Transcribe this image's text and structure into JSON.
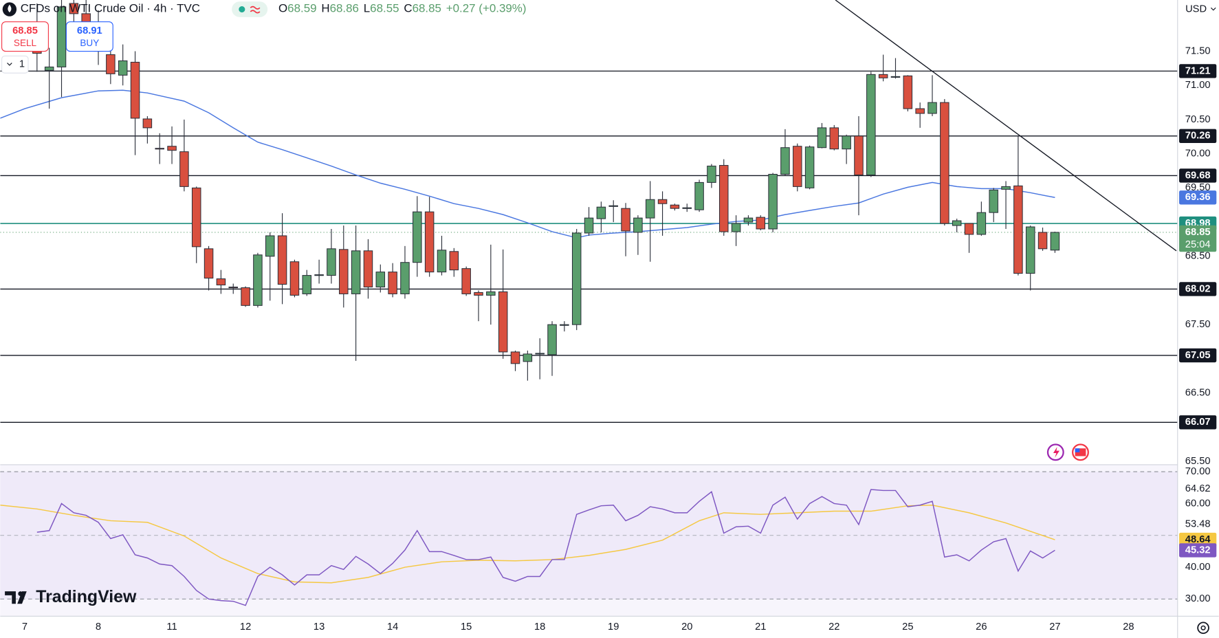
{
  "chart_data": {
    "type": "candlestick",
    "title": "CFDs on WTI Crude Oil · 4h · TVC",
    "header": {
      "o": "O",
      "h": "H",
      "l": "L",
      "c": "C",
      "change": "+0.27 (+0.39%)",
      "sell": "SELL",
      "buy": "BUY",
      "buy_price": 68.91,
      "qty": "1",
      "currency": "USD",
      "countdown": "25:04",
      "brand": "TradingView"
    },
    "xlim": [
      -3,
      93
    ],
    "xticks": [
      {
        "value": -1,
        "label": "7"
      },
      {
        "value": 5,
        "label": "8"
      },
      {
        "value": 11,
        "label": "11"
      },
      {
        "value": 17,
        "label": "12"
      },
      {
        "value": 23,
        "label": "13"
      },
      {
        "value": 29,
        "label": "14"
      },
      {
        "value": 35,
        "label": "15"
      },
      {
        "value": 41,
        "label": "18"
      },
      {
        "value": 47,
        "label": "19"
      },
      {
        "value": 53,
        "label": "20"
      },
      {
        "value": 59,
        "label": "21"
      },
      {
        "value": 65,
        "label": "22"
      },
      {
        "value": 71,
        "label": "25"
      },
      {
        "value": 77,
        "label": "26"
      },
      {
        "value": 83,
        "label": "27"
      },
      {
        "value": 89,
        "label": "28"
      }
    ],
    "ylim": [
      65.45,
      72.25
    ],
    "yticks": [
      {
        "value": 71.5,
        "label": "71.50"
      },
      {
        "value": 71,
        "label": "71.00"
      },
      {
        "value": 70.5,
        "label": "70.50"
      },
      {
        "value": 70,
        "label": "70.00"
      },
      {
        "value": 69.5,
        "label": "69.50"
      },
      {
        "value": 68.5,
        "label": "68.50"
      },
      {
        "value": 67.5,
        "label": "67.50"
      },
      {
        "value": 66.5,
        "label": "66.50"
      },
      {
        "value": 65.5,
        "label": "65.50"
      }
    ],
    "up_color": "#5a9e6c",
    "down_color": "#d9503f",
    "candles": {
      "open": [
        71.9,
        71.22,
        71.27,
        72.2,
        72.05,
        71.9,
        71.45,
        71.15,
        71.34,
        70.51,
        70.08,
        70.11,
        70.03,
        69.5,
        68.61,
        68.17,
        68.05,
        68.04,
        67.78,
        68.5,
        68.8,
        68.42,
        67.95,
        68.22,
        68.22,
        68.6,
        67.95,
        68.58,
        68.05,
        68.27,
        67.95,
        68.41,
        69.15,
        68.27,
        68.57,
        68.32,
        67.97,
        67.93,
        67.98,
        67.1,
        66.96,
        67.07,
        67.06,
        67.49,
        67.5,
        68.84,
        69.05,
        69.23,
        69.2,
        68.85,
        69.06,
        69.33,
        69.25,
        69.2,
        69.18,
        69.58,
        69.83,
        68.86,
        69.0,
        69.07,
        68.9,
        69.7,
        70.11,
        69.5,
        70.09,
        70.38,
        70.07,
        70.26,
        69.69,
        71.16,
        71.12,
        71.14,
        70.66,
        70.59,
        70.75,
        68.95,
        68.98,
        68.82,
        69.14,
        69.48,
        69.53,
        68.25,
        68.85,
        68.59
      ],
      "high": [
        72.2,
        71.55,
        72.25,
        72.25,
        72.25,
        72.1,
        71.6,
        71.6,
        71.5,
        70.55,
        70.3,
        70.4,
        70.5,
        69.52,
        68.65,
        68.3,
        68.1,
        68.06,
        68.55,
        68.85,
        69.13,
        68.45,
        68.3,
        68.45,
        68.9,
        68.95,
        68.95,
        68.75,
        68.38,
        68.4,
        68.65,
        69.38,
        69.37,
        68.8,
        68.62,
        68.35,
        68.0,
        68.67,
        68.6,
        67.12,
        67.12,
        67.3,
        67.55,
        67.55,
        68.9,
        69.22,
        69.3,
        69.32,
        69.28,
        69.1,
        69.6,
        69.45,
        69.27,
        69.27,
        69.62,
        69.85,
        69.92,
        69.1,
        69.1,
        69.1,
        69.72,
        70.36,
        70.15,
        70.12,
        70.45,
        70.42,
        70.28,
        70.55,
        71.2,
        71.45,
        71.4,
        71.15,
        70.75,
        71.15,
        70.8,
        69.05,
        68.98,
        69.3,
        69.5,
        69.6,
        70.26,
        68.95,
        68.92,
        68.86
      ],
      "low": [
        71.2,
        70.66,
        70.83,
        71.9,
        71.7,
        71.3,
        71.02,
        71.0,
        69.98,
        70.15,
        69.85,
        69.85,
        69.45,
        68.4,
        68.0,
        67.95,
        67.95,
        67.76,
        67.75,
        67.85,
        67.8,
        67.9,
        67.92,
        68.1,
        68.1,
        67.75,
        66.97,
        67.88,
        67.97,
        67.9,
        67.88,
        68.2,
        68.2,
        68.22,
        68.2,
        67.92,
        67.55,
        67.5,
        67.0,
        66.82,
        66.68,
        66.7,
        66.75,
        67.4,
        67.42,
        68.8,
        68.85,
        69.0,
        68.5,
        68.52,
        68.42,
        68.8,
        69.17,
        69.15,
        69.15,
        69.5,
        68.8,
        68.65,
        68.95,
        68.88,
        68.85,
        69.68,
        69.45,
        69.48,
        70.08,
        70.05,
        69.85,
        69.1,
        69.66,
        71.06,
        71.1,
        70.62,
        70.38,
        70.55,
        68.95,
        68.85,
        68.55,
        68.8,
        69.0,
        68.9,
        68.22,
        68.0,
        68.58,
        68.55
      ],
      "close": [
        71.47,
        71.27,
        72.15,
        72.05,
        71.9,
        71.5,
        71.17,
        71.36,
        70.52,
        70.38,
        70.07,
        70.05,
        69.52,
        68.64,
        68.18,
        68.08,
        68.04,
        67.78,
        68.52,
        68.8,
        68.09,
        67.93,
        68.22,
        68.23,
        68.61,
        67.95,
        68.58,
        68.05,
        68.27,
        67.95,
        68.41,
        69.15,
        68.27,
        68.59,
        68.3,
        67.95,
        67.93,
        67.98,
        67.1,
        66.93,
        67.07,
        67.08,
        67.5,
        67.5,
        68.84,
        69.06,
        69.22,
        69.24,
        68.87,
        69.06,
        69.33,
        69.27,
        69.2,
        69.21,
        69.58,
        69.82,
        68.86,
        68.98,
        69.06,
        68.9,
        69.7,
        70.09,
        69.52,
        70.1,
        70.38,
        70.07,
        70.26,
        69.69,
        71.16,
        71.11,
        71.13,
        70.66,
        70.59,
        70.75,
        68.98,
        69.02,
        68.82,
        69.14,
        69.47,
        69.52,
        68.25,
        68.93,
        68.61,
        68.85
      ]
    },
    "ma": {
      "color": "#4a77e0",
      "x": [
        -3,
        -1,
        2,
        5,
        7,
        9,
        12,
        14,
        16,
        18,
        20,
        22,
        24,
        26,
        28,
        30,
        32,
        34,
        36,
        38,
        40,
        42,
        44,
        45,
        47,
        49,
        51,
        53,
        55,
        57,
        59,
        61,
        63,
        65,
        67,
        69,
        71,
        73,
        75,
        77,
        79,
        81,
        83
      ],
      "values": [
        70.52,
        70.66,
        70.82,
        70.92,
        70.93,
        70.89,
        70.77,
        70.6,
        70.38,
        70.17,
        70.06,
        69.94,
        69.82,
        69.69,
        69.57,
        69.48,
        69.38,
        69.27,
        69.2,
        69.11,
        68.99,
        68.86,
        68.77,
        68.81,
        68.84,
        68.86,
        68.89,
        68.92,
        68.97,
        69.01,
        69.03,
        69.11,
        69.17,
        69.23,
        69.28,
        69.41,
        69.51,
        69.58,
        69.52,
        69.49,
        69.49,
        69.43,
        69.36
      ]
    },
    "levels": {
      "color": "#131722",
      "values": [
        71.21,
        70.26,
        69.68,
        68.02,
        67.05,
        66.07
      ]
    },
    "reference_line": {
      "color": "#1f8f7f",
      "value": 68.98
    },
    "trendline": {
      "color": "#131722",
      "x": [
        65.1,
        92.9
      ],
      "values": [
        72.25,
        68.58
      ]
    },
    "rsi": {
      "color": "#7e57c2",
      "ma_color": "#f5c842",
      "band_color": "#efeaf9",
      "ylim": [
        24.6,
        72.2
      ],
      "bands": [
        30,
        70
      ],
      "mid": 50,
      "yticks": [
        {
          "value": 70,
          "label": "70.00"
        },
        {
          "value": 64.62,
          "label": "64.62"
        },
        {
          "value": 60,
          "label": "60.00"
        },
        {
          "value": 53.48,
          "label": "53.48"
        },
        {
          "value": 40,
          "label": "40.00"
        },
        {
          "value": 30,
          "label": "30.00"
        }
      ],
      "values": [
        51.0,
        51.5,
        60.0,
        57.1,
        56.3,
        54.1,
        49.0,
        50.2,
        43.9,
        42.9,
        41.0,
        40.5,
        37.1,
        32.7,
        30.0,
        29.5,
        29.3,
        28.0,
        37.1,
        40.0,
        37.6,
        34.4,
        37.6,
        37.6,
        40.5,
        39.3,
        43.4,
        41.0,
        38.0,
        41.2,
        45.4,
        51.5,
        44.9,
        44.9,
        43.7,
        42.4,
        42.4,
        43.2,
        36.8,
        35.6,
        37.1,
        37.1,
        42.4,
        42.4,
        56.6,
        58.0,
        59.3,
        59.5,
        54.6,
        56.3,
        59.0,
        58.3,
        57.1,
        57.1,
        60.7,
        63.7,
        50.7,
        52.7,
        52.9,
        50.7,
        59.5,
        62.0,
        55.1,
        60.0,
        62.2,
        60.0,
        59.5,
        53.4,
        64.4,
        64.1,
        64.1,
        59.0,
        59.5,
        60.7,
        43.2,
        43.9,
        42.0,
        45.4,
        48.0,
        49.0,
        38.8,
        45.1,
        42.9,
        45.32
      ],
      "ma": {
        "x": [
          -3,
          0,
          3,
          6,
          9,
          12,
          15,
          18,
          21,
          24,
          27,
          30,
          33,
          36,
          39,
          42,
          45,
          48,
          51,
          54,
          56,
          59,
          62,
          65,
          68,
          71,
          73,
          76,
          79,
          83
        ],
        "values": [
          59.5,
          58.3,
          56.3,
          54.6,
          54.1,
          49.8,
          42.9,
          38.0,
          35.4,
          35.1,
          36.8,
          40.0,
          41.7,
          42.2,
          42.0,
          42.4,
          43.7,
          45.6,
          48.5,
          54.6,
          57.1,
          56.6,
          57.1,
          57.6,
          57.6,
          59.3,
          59.5,
          57.1,
          53.9,
          48.64
        ]
      }
    }
  }
}
